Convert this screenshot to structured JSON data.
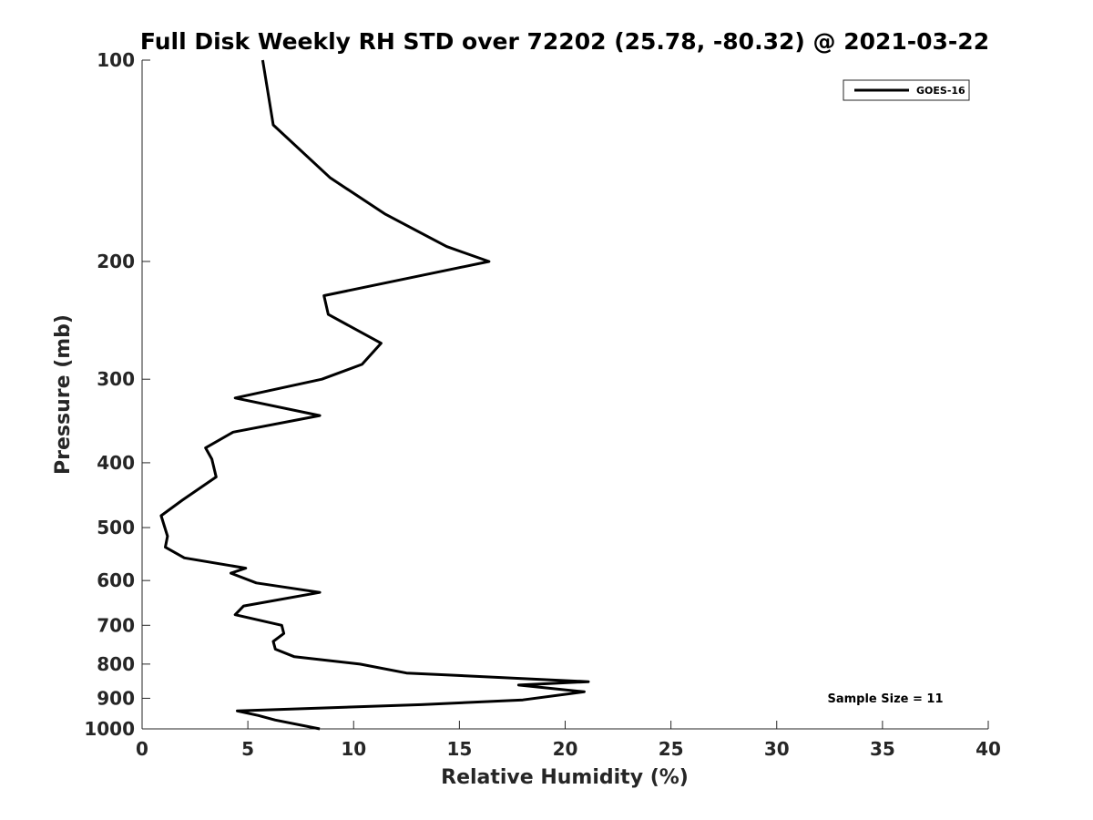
{
  "chart_data": {
    "type": "line",
    "title": "Full Disk Weekly RH STD over 72202 (25.78, -80.32) @ 2021-03-22",
    "xlabel": "Relative Humidity (%)",
    "ylabel": "Pressure (mb)",
    "xlim": [
      0,
      40
    ],
    "ylim": [
      100,
      1000
    ],
    "y_scale": "log",
    "y_reversed": true,
    "x_ticks": [
      0,
      5,
      10,
      15,
      20,
      25,
      30,
      35,
      40
    ],
    "y_ticks": [
      100,
      200,
      300,
      400,
      500,
      600,
      700,
      800,
      900,
      1000
    ],
    "grid": false,
    "legend": {
      "position": "top-right",
      "entries": [
        "GOES-16"
      ]
    },
    "annotation": "Sample Size = 11",
    "series": [
      {
        "name": "GOES-16",
        "color": "#000000",
        "x": [
          5.7,
          6.2,
          8.9,
          11.5,
          14.4,
          16.4,
          8.6,
          8.8,
          11.3,
          10.4,
          8.5,
          4.4,
          8.4,
          4.3,
          3.0,
          3.3,
          3.5,
          1.9,
          0.9,
          1.2,
          1.1,
          2.0,
          4.9,
          4.2,
          5.4,
          8.4,
          4.8,
          4.4,
          6.6,
          6.7,
          6.2,
          6.3,
          7.2,
          10.3,
          12.5,
          21.1,
          17.8,
          20.9,
          18.0,
          13.2,
          4.5,
          5.5,
          6.3,
          8.4
        ],
        "y": [
          100,
          125,
          150,
          170,
          190,
          200,
          225,
          240,
          265,
          285,
          300,
          320,
          340,
          360,
          380,
          395,
          420,
          455,
          480,
          515,
          535,
          555,
          575,
          585,
          605,
          625,
          655,
          675,
          700,
          720,
          740,
          760,
          780,
          800,
          825,
          850,
          860,
          880,
          905,
          920,
          940,
          955,
          970,
          1000
        ]
      }
    ]
  }
}
